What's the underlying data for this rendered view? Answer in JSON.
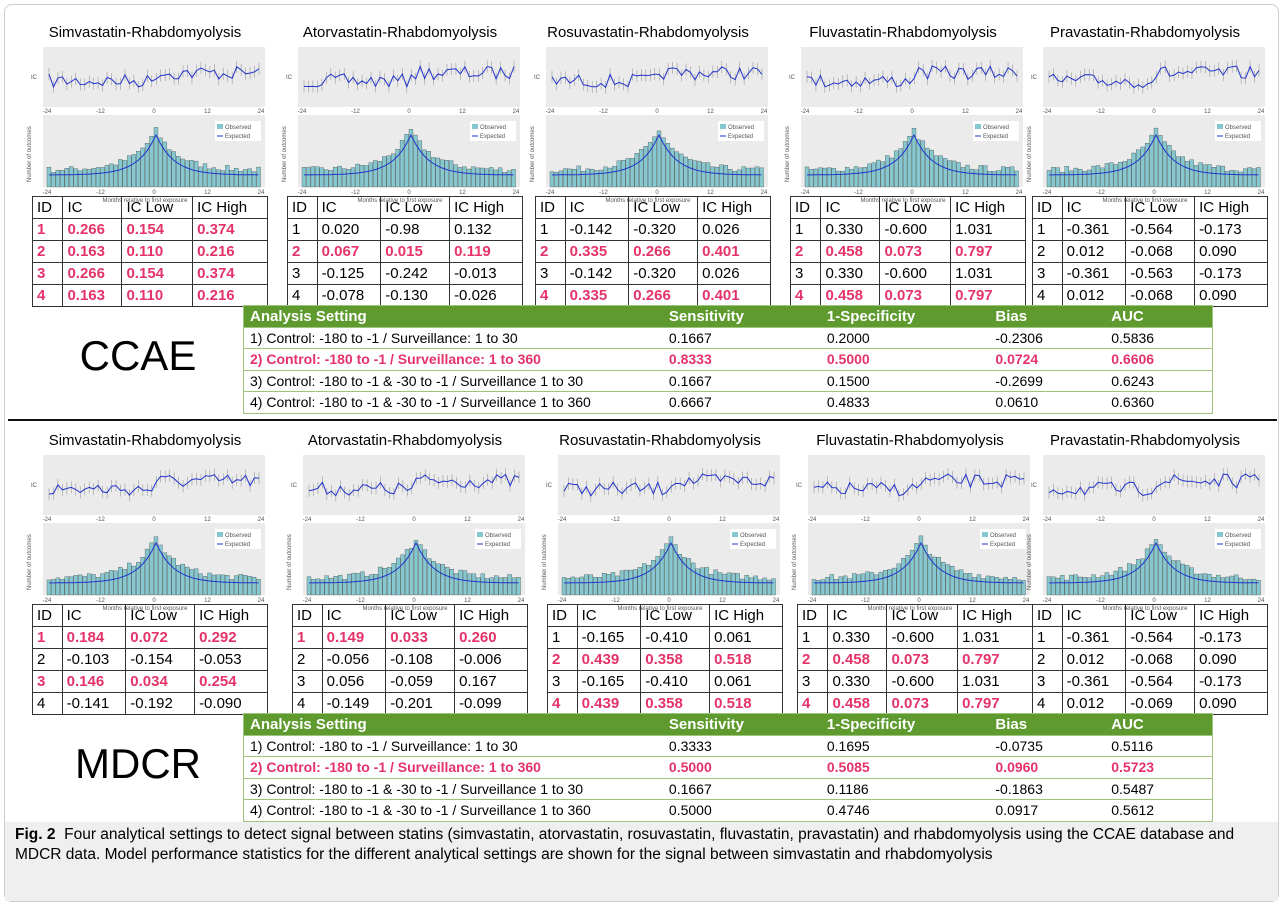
{
  "plot_labels": {
    "ic_axis": "IC",
    "count_axis": "Number of outcomes",
    "x_axis": "Months relative to first exposure",
    "observed": "Observed",
    "expected": "Expected",
    "xticks": [
      "-24",
      "-12",
      "0",
      "12",
      "24"
    ]
  },
  "sections": [
    {
      "label": "CCAE",
      "panels": [
        {
          "title": "Simvastatin-Rhabdomyolysis",
          "header": [
            "ID",
            "IC",
            "IC Low",
            "IC High"
          ],
          "rows": [
            [
              "1",
              "0.266",
              "0.154",
              "0.374"
            ],
            [
              "2",
              "0.163",
              "0.110",
              "0.216"
            ],
            [
              "3",
              "0.266",
              "0.154",
              "0.374"
            ],
            [
              "4",
              "0.163",
              "0.110",
              "0.216"
            ]
          ],
          "highlight_rows": [
            0,
            1,
            2,
            3
          ]
        },
        {
          "title": "Atorvastatin-Rhabdomyolysis",
          "header": [
            "ID",
            "IC",
            "IC Low",
            "IC High"
          ],
          "rows": [
            [
              "1",
              "0.020",
              "-0.98",
              "0.132"
            ],
            [
              "2",
              "0.067",
              "0.015",
              "0.119"
            ],
            [
              "3",
              "-0.125",
              "-0.242",
              "-0.013"
            ],
            [
              "4",
              "-0.078",
              "-0.130",
              "-0.026"
            ]
          ],
          "highlight_rows": [
            1
          ]
        },
        {
          "title": "Rosuvastatin-Rhabdomyolysis",
          "header": [
            "ID",
            "IC",
            "IC Low",
            "IC High"
          ],
          "rows": [
            [
              "1",
              "-0.142",
              "-0.320",
              "0.026"
            ],
            [
              "2",
              "0.335",
              "0.266",
              "0.401"
            ],
            [
              "3",
              "-0.142",
              "-0.320",
              "0.026"
            ],
            [
              "4",
              "0.335",
              "0.266",
              "0.401"
            ]
          ],
          "highlight_rows": [
            1,
            3
          ]
        },
        {
          "title": "Fluvastatin-Rhabdomyolysis",
          "header": [
            "ID",
            "IC",
            "IC Low",
            "IC High"
          ],
          "rows": [
            [
              "1",
              "0.330",
              "-0.600",
              "1.031"
            ],
            [
              "2",
              "0.458",
              "0.073",
              "0.797"
            ],
            [
              "3",
              "0.330",
              "-0.600",
              "1.031"
            ],
            [
              "4",
              "0.458",
              "0.073",
              "0.797"
            ]
          ],
          "highlight_rows": [
            1,
            3
          ]
        },
        {
          "title": "Pravastatin-Rhabdomyolysis",
          "header": [
            "ID",
            "IC",
            "IC Low",
            "IC High"
          ],
          "rows": [
            [
              "1",
              "-0.361",
              "-0.564",
              "-0.173"
            ],
            [
              "2",
              "0.012",
              "-0.068",
              "0.090"
            ],
            [
              "3",
              "-0.361",
              "-0.563",
              "-0.173"
            ],
            [
              "4",
              "0.012",
              "-0.068",
              "0.090"
            ]
          ],
          "highlight_rows": []
        }
      ],
      "analysis": {
        "header": [
          "Analysis Setting",
          "Sensitivity",
          "1-Specificity",
          "Bias",
          "AUC"
        ],
        "rows": [
          [
            "1) Control: -180 to -1 / Surveillance: 1 to 30",
            "0.1667",
            "0.2000",
            "-0.2306",
            "0.5836"
          ],
          [
            "2) Control: -180 to -1 / Surveillance: 1 to 360",
            "0.8333",
            "0.5000",
            "0.0724",
            "0.6606"
          ],
          [
            "3) Control: -180 to -1 & -30 to -1 / Surveillance 1 to 30",
            "0.1667",
            "0.1500",
            "-0.2699",
            "0.6243"
          ],
          [
            "4) Control: -180 to -1 & -30 to -1 / Surveillance 1 to 360",
            "0.6667",
            "0.4833",
            "0.0610",
            "0.6360"
          ]
        ],
        "highlight_rows": [
          1
        ]
      }
    },
    {
      "label": "MDCR",
      "panels": [
        {
          "title": "Simvastatin-Rhabdomyolysis",
          "header": [
            "ID",
            "IC",
            "IC Low",
            "IC High"
          ],
          "rows": [
            [
              "1",
              "0.184",
              "0.072",
              "0.292"
            ],
            [
              "2",
              "-0.103",
              "-0.154",
              "-0.053"
            ],
            [
              "3",
              "0.146",
              "0.034",
              "0.254"
            ],
            [
              "4",
              "-0.141",
              "-0.192",
              "-0.090"
            ]
          ],
          "highlight_rows": [
            0,
            2
          ]
        },
        {
          "title": "Atorvastatin-Rhabdomyolysis",
          "header": [
            "ID",
            "IC",
            "IC Low",
            "IC High"
          ],
          "rows": [
            [
              "1",
              "0.149",
              "0.033",
              "0.260"
            ],
            [
              "2",
              "-0.056",
              "-0.108",
              "-0.006"
            ],
            [
              "3",
              "0.056",
              "-0.059",
              "0.167"
            ],
            [
              "4",
              "-0.149",
              "-0.201",
              "-0.099"
            ]
          ],
          "highlight_rows": [
            0
          ]
        },
        {
          "title": "Rosuvastatin-Rhabdomyolysis",
          "header": [
            "ID",
            "IC",
            "IC Low",
            "IC High"
          ],
          "rows": [
            [
              "1",
              "-0.165",
              "-0.410",
              "0.061"
            ],
            [
              "2",
              "0.439",
              "0.358",
              "0.518"
            ],
            [
              "3",
              "-0.165",
              "-0.410",
              "0.061"
            ],
            [
              "4",
              "0.439",
              "0.358",
              "0.518"
            ]
          ],
          "highlight_rows": [
            1,
            3
          ]
        },
        {
          "title": "Fluvastatin-Rhabdomyolysis",
          "header": [
            "ID",
            "IC",
            "IC Low",
            "IC High"
          ],
          "rows": [
            [
              "1",
              "0.330",
              "-0.600",
              "1.031"
            ],
            [
              "2",
              "0.458",
              "0.073",
              "0.797"
            ],
            [
              "3",
              "0.330",
              "-0.600",
              "1.031"
            ],
            [
              "4",
              "0.458",
              "0.073",
              "0.797"
            ]
          ],
          "highlight_rows": [
            1,
            3
          ]
        },
        {
          "title": "Pravastatin-Rhabdomyolysis",
          "header": [
            "ID",
            "IC",
            "IC Low",
            "IC High"
          ],
          "rows": [
            [
              "1",
              "-0.361",
              "-0.564",
              "-0.173"
            ],
            [
              "2",
              "0.012",
              "-0.068",
              "0.090"
            ],
            [
              "3",
              "-0.361",
              "-0.564",
              "-0.173"
            ],
            [
              "4",
              "0.012",
              "-0.069",
              "0.090"
            ]
          ],
          "highlight_rows": []
        }
      ],
      "analysis": {
        "header": [
          "Analysis Setting",
          "Sensitivity",
          "1-Specificity",
          "Bias",
          "AUC"
        ],
        "rows": [
          [
            "1) Control: -180 to -1 / Surveillance: 1 to 30",
            "0.3333",
            "0.1695",
            "-0.0735",
            "0.5116"
          ],
          [
            "2) Control: -180 to -1 / Surveillance: 1 to 360",
            "0.5000",
            "0.5085",
            "0.0960",
            "0.5723"
          ],
          [
            "3) Control: -180 to -1 & -30 to -1 / Surveillance 1 to 30",
            "0.1667",
            "0.1186",
            "-0.1863",
            "0.5487"
          ],
          [
            "4) Control: -180 to -1 & -30 to -1 / Surveillance 1 to 360",
            "0.5000",
            "0.4746",
            "0.0917",
            "0.5612"
          ]
        ],
        "highlight_rows": [
          1
        ]
      }
    }
  ],
  "caption": {
    "label": "Fig. 2",
    "text": "Four analytical settings to detect signal between statins (simvastatin, atorvastatin, rosuvastatin, fluvastatin, pravastatin) and rhabdomyolysis using the CCAE database and MDCR data. Model performance statistics for the different analytical settings are shown for the signal between simvastatin and rhabdomyolysis"
  },
  "highlight_color": "#e5336a",
  "header_color": "#5e9a2e"
}
